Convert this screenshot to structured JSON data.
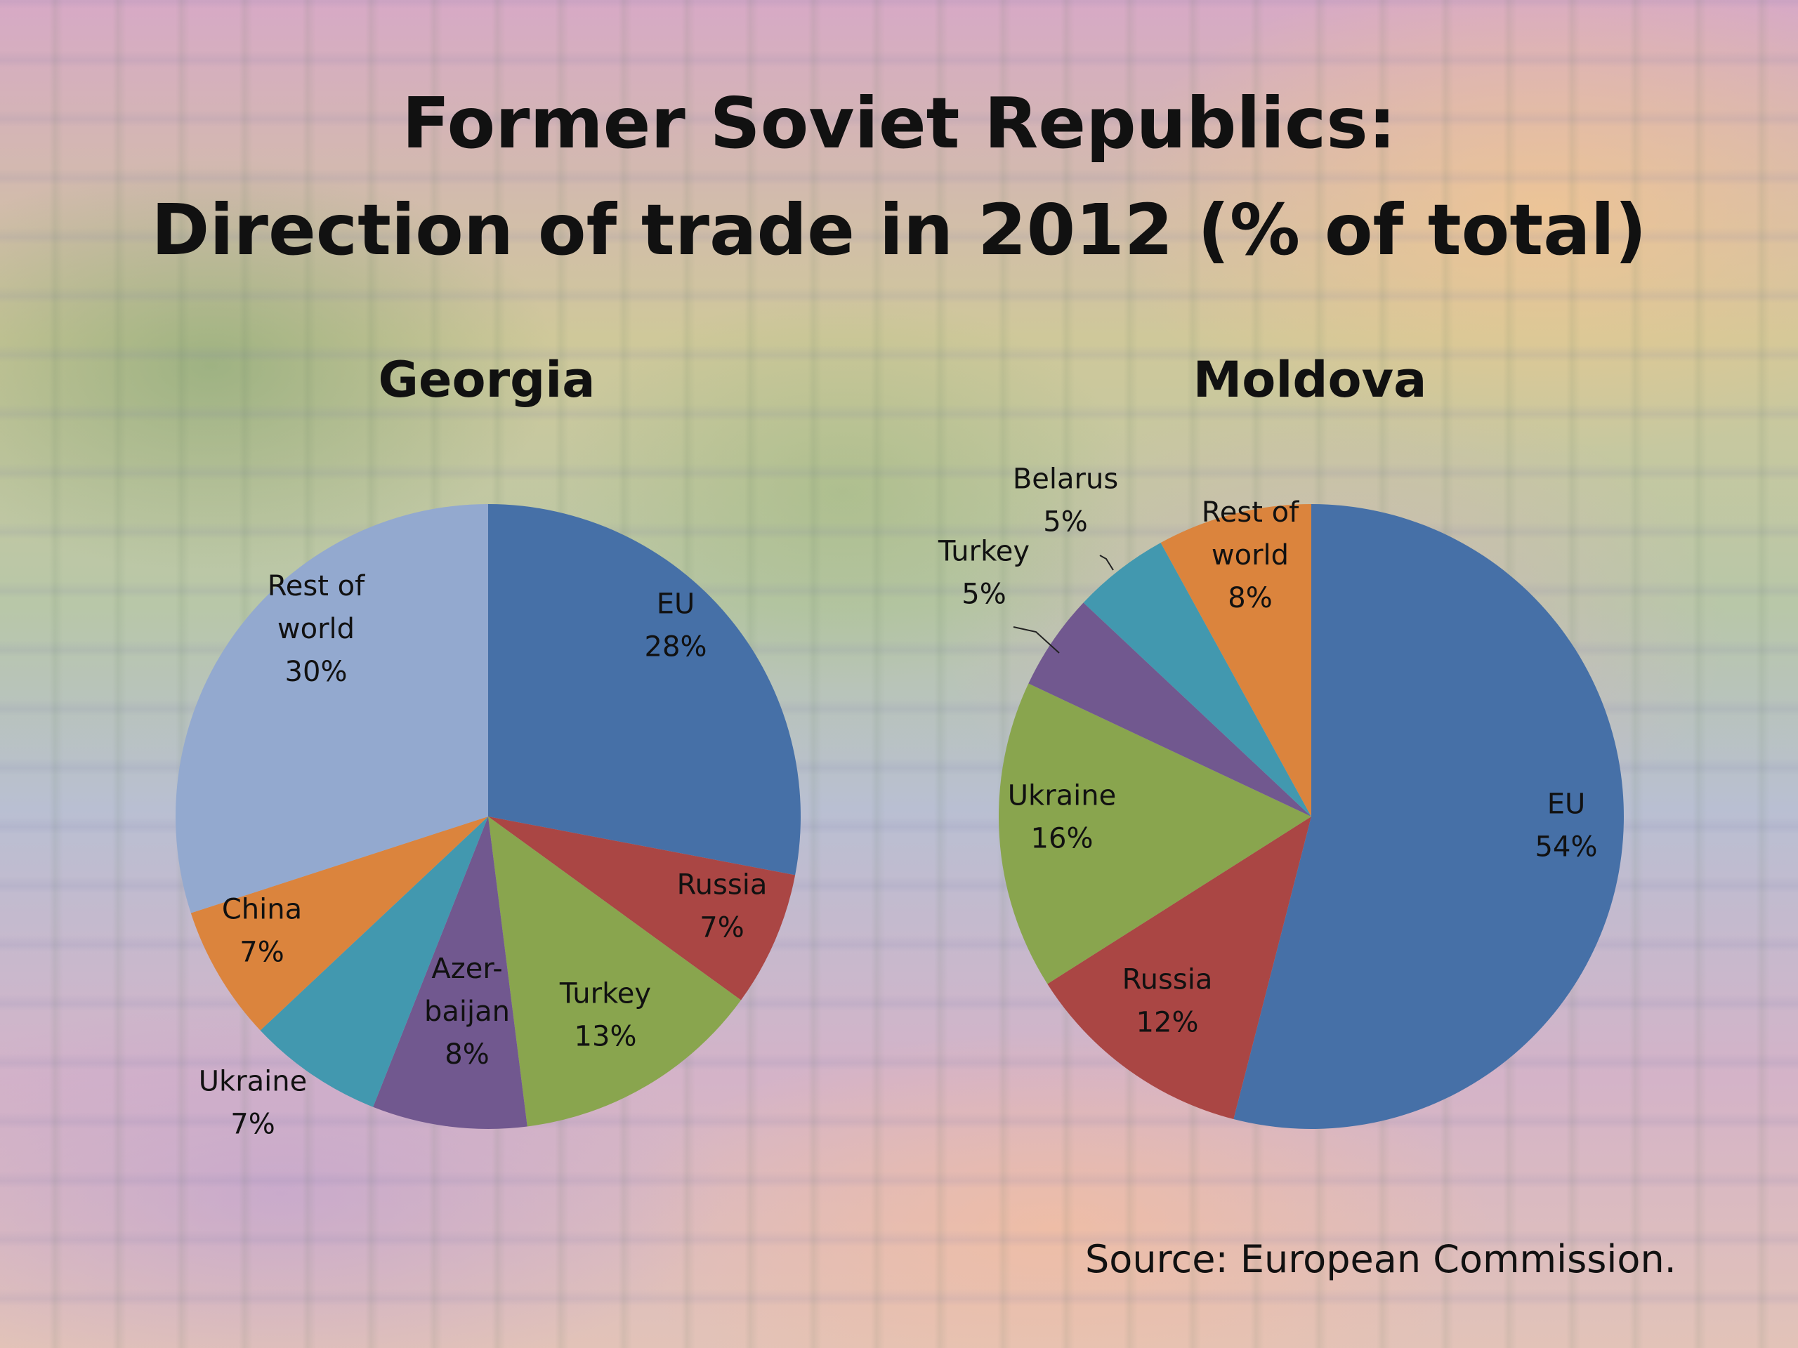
{
  "slide": {
    "title_line1": "Former Soviet Republics:",
    "title_line2": "Direction of trade in 2012 (% of total)",
    "source": "Source: European Commission."
  },
  "chart_data": [
    {
      "type": "pie",
      "title": "Georgia",
      "slices": [
        {
          "label": "EU",
          "value": 28,
          "display": "28%",
          "color": "#4670a7"
        },
        {
          "label": "Russia",
          "value": 7,
          "display": "7%",
          "color": "#aa4644"
        },
        {
          "label": "Turkey",
          "value": 13,
          "display": "13%",
          "color": "#89a54e"
        },
        {
          "label": "Azer-baijan",
          "value": 8,
          "display": "8%",
          "color": "#71588f"
        },
        {
          "label": "Ukraine",
          "value": 7,
          "display": "7%",
          "color": "#4298af"
        },
        {
          "label": "China",
          "value": 7,
          "display": "7%",
          "color": "#db843d"
        },
        {
          "label": "Rest of world",
          "value": 30,
          "display": "30%",
          "color": "#93a9cf"
        }
      ]
    },
    {
      "type": "pie",
      "title": "Moldova",
      "slices": [
        {
          "label": "EU",
          "value": 54,
          "display": "54%",
          "color": "#4670a7"
        },
        {
          "label": "Russia",
          "value": 12,
          "display": "12%",
          "color": "#aa4644"
        },
        {
          "label": "Ukraine",
          "value": 16,
          "display": "16%",
          "color": "#89a54e"
        },
        {
          "label": "Turkey",
          "value": 5,
          "display": "5%",
          "color": "#71588f"
        },
        {
          "label": "Belarus",
          "value": 5,
          "display": "5%",
          "color": "#4298af"
        },
        {
          "label": "Rest of world",
          "value": 8,
          "display": "8%",
          "color": "#db843d"
        }
      ]
    }
  ]
}
